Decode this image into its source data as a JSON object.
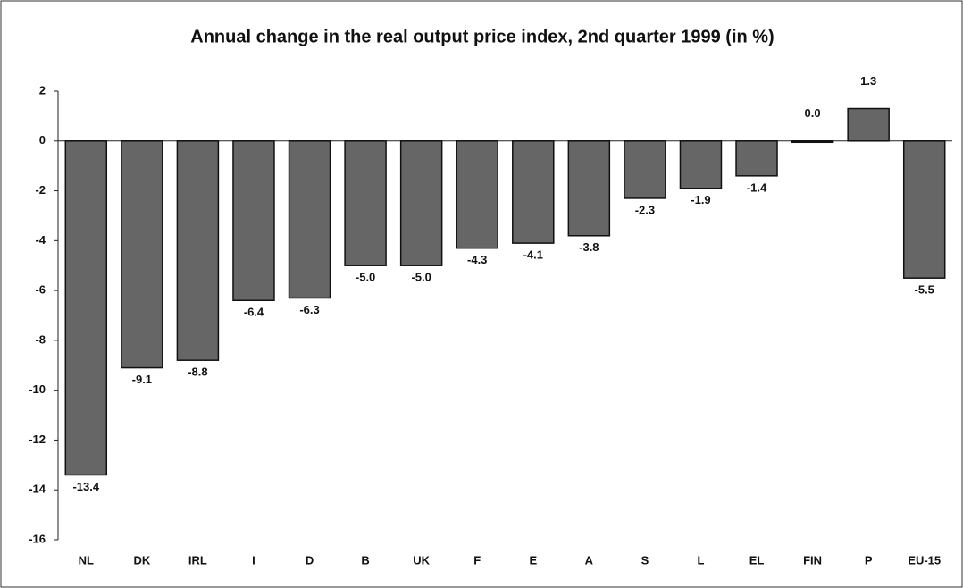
{
  "chart_data": {
    "type": "bar",
    "title": "Annual change in the real output price index, 2nd quarter 1999 (in %)",
    "categories": [
      "NL",
      "DK",
      "IRL",
      "I",
      "D",
      "B",
      "UK",
      "F",
      "E",
      "A",
      "S",
      "L",
      "EL",
      "FIN",
      "P",
      "EU-15"
    ],
    "values": [
      -13.4,
      -9.1,
      -8.8,
      -6.4,
      -6.3,
      -5.0,
      -5.0,
      -4.3,
      -4.1,
      -3.8,
      -2.3,
      -1.9,
      -1.4,
      0.0,
      1.3,
      -5.5
    ],
    "value_labels": [
      "-13.4",
      "-9.1",
      "-8.8",
      "-6.4",
      "-6.3",
      "-5.0",
      "-5.0",
      "-4.3",
      "-4.1",
      "-3.8",
      "-2.3",
      "-1.9",
      "-1.4",
      "0.0",
      "1.3",
      "-5.5"
    ],
    "color": "#666666",
    "ylim": [
      -16,
      2
    ],
    "yticks": [
      2,
      0,
      -2,
      -4,
      -6,
      -8,
      -10,
      -12,
      -14,
      -16
    ]
  }
}
